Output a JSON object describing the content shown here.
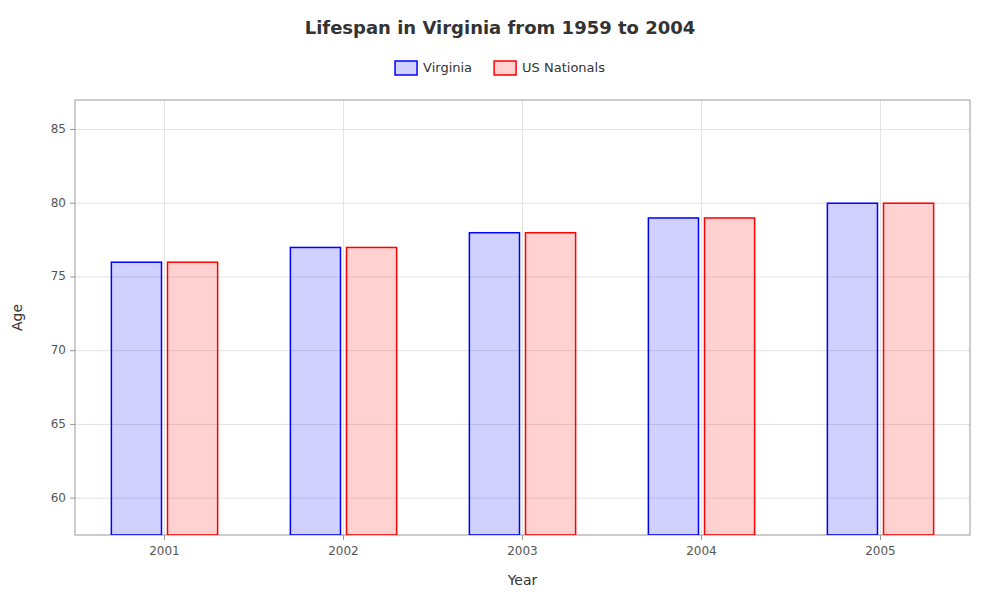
{
  "chart_data": {
    "type": "bar",
    "title": "Lifespan in Virginia from 1959 to 2004",
    "xlabel": "Year",
    "ylabel": "Age",
    "categories": [
      "2001",
      "2002",
      "2003",
      "2004",
      "2005"
    ],
    "series": [
      {
        "name": "Virginia",
        "color": "#0000ff",
        "values": [
          76,
          77,
          78,
          79,
          80
        ]
      },
      {
        "name": "US Nationals",
        "color": "#ff0000",
        "values": [
          76,
          77,
          78,
          79,
          80
        ]
      }
    ],
    "ylim": [
      57.5,
      87
    ],
    "yticks": [
      60,
      65,
      70,
      75,
      80,
      85
    ],
    "grid": true,
    "legend": "top"
  }
}
